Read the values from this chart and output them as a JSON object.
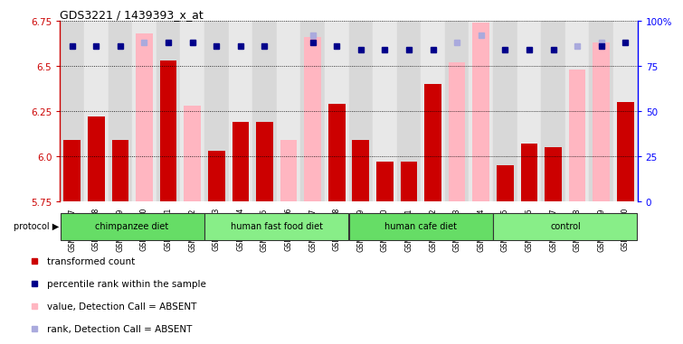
{
  "title": "GDS3221 / 1439393_x_at",
  "samples": [
    "GSM144707",
    "GSM144708",
    "GSM144709",
    "GSM144710",
    "GSM144711",
    "GSM144712",
    "GSM144713",
    "GSM144714",
    "GSM144715",
    "GSM144716",
    "GSM144717",
    "GSM144718",
    "GSM144719",
    "GSM144720",
    "GSM144721",
    "GSM144722",
    "GSM144723",
    "GSM144724",
    "GSM144725",
    "GSM144726",
    "GSM144727",
    "GSM144728",
    "GSM144729",
    "GSM144730"
  ],
  "transformed_count": [
    6.09,
    6.22,
    6.09,
    null,
    6.53,
    null,
    6.03,
    6.19,
    6.19,
    null,
    null,
    6.29,
    6.09,
    5.97,
    5.97,
    6.4,
    null,
    null,
    5.95,
    6.07,
    6.05,
    null,
    null,
    6.3
  ],
  "percentile_rank": [
    86,
    86,
    86,
    null,
    88,
    88,
    86,
    86,
    86,
    null,
    88,
    86,
    84,
    84,
    84,
    84,
    null,
    null,
    84,
    84,
    84,
    null,
    86,
    88
  ],
  "absent_value": [
    null,
    null,
    null,
    6.68,
    null,
    6.28,
    null,
    null,
    null,
    6.09,
    6.66,
    null,
    null,
    null,
    null,
    null,
    6.52,
    6.74,
    null,
    null,
    null,
    6.48,
    6.63,
    null
  ],
  "absent_rank": [
    null,
    null,
    null,
    88,
    null,
    88,
    null,
    null,
    null,
    null,
    92,
    null,
    null,
    null,
    null,
    null,
    88,
    92,
    null,
    null,
    null,
    86,
    88,
    null
  ],
  "groups": [
    {
      "label": "chimpanzee diet",
      "start": 0,
      "end": 5
    },
    {
      "label": "human fast food diet",
      "start": 6,
      "end": 11
    },
    {
      "label": "human cafe diet",
      "start": 12,
      "end": 17
    },
    {
      "label": "control",
      "start": 18,
      "end": 23
    }
  ],
  "ylim": [
    5.75,
    6.75
  ],
  "y2lim": [
    0,
    100
  ],
  "yticks": [
    5.75,
    6.0,
    6.25,
    6.5,
    6.75
  ],
  "y2ticks": [
    0,
    25,
    50,
    75,
    100
  ],
  "bar_color_present": "#CC0000",
  "bar_color_absent": "#FFB6C1",
  "dot_color_present": "#00008B",
  "dot_color_absent": "#AAAADD"
}
